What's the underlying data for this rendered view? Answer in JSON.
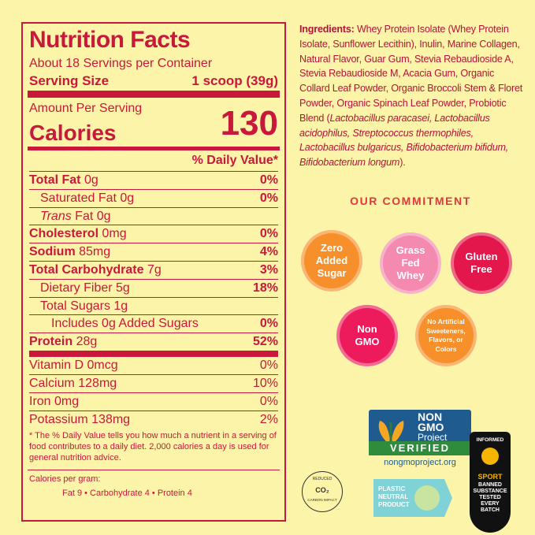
{
  "nutrition": {
    "title": "Nutrition Facts",
    "servings": "About 18 Servings per Container",
    "serving_size_label": "Serving Size",
    "serving_size_value": "1 scoop (39g)",
    "amount_per_serving": "Amount Per Serving",
    "calories_label": "Calories",
    "calories_value": "130",
    "daily_value_header": "% Daily Value*",
    "rows": [
      {
        "name": "Total Fat",
        "amount": "0g",
        "dv": "0%"
      },
      {
        "name": "Saturated Fat",
        "amount": "0g",
        "dv": "0%"
      },
      {
        "name_italic": "Trans",
        "name": "Fat",
        "amount": "0g"
      },
      {
        "name": "Cholesterol",
        "amount": "0mg",
        "dv": "0%"
      },
      {
        "name": "Sodium",
        "amount": "85mg",
        "dv": "4%"
      },
      {
        "name": "Total Carbohydrate",
        "amount": "7g",
        "dv": "3%"
      },
      {
        "name": "Dietary Fiber",
        "amount": "5g",
        "dv": "18%"
      },
      {
        "name": "Total Sugars",
        "amount": "1g"
      },
      {
        "name": "Includes",
        "amount": "0g Added Sugars",
        "dv": "0%"
      },
      {
        "name": "Protein",
        "amount": "28g",
        "dv": "52%"
      },
      {
        "name": "Vitamin D",
        "amount": "0mcg",
        "dv": "0%"
      },
      {
        "name": "Calcium",
        "amount": "128mg",
        "dv": "10%"
      },
      {
        "name": "Iron",
        "amount": "0mg",
        "dv": "0%"
      },
      {
        "name": "Potassium",
        "amount": "138mg",
        "dv": "2%"
      }
    ],
    "footnote": "* The % Daily Value tells you how much a nutrient in a serving of food contributes to a daily diet. 2,000 calories a day is used for general nutrition advice.",
    "calories_per_gram": "Calories per gram:",
    "calories_per_gram_values": "Fat 9 • Carbohydrate 4 • Protein 4"
  },
  "ingredients": {
    "label": "Ingredients:",
    "text": "Whey Protein Isolate (Whey Protein Isolate, Sunflower Lecithin), Inulin, Marine Collagen, Natural Flavor, Guar Gum, Stevia Rebaudioside A, Stevia Rebaudioside M, Acacia Gum, Organic Collard Leaf Powder, Organic Broccoli Stem & Floret Powder, Organic Spinach Leaf Powder, Probiotic Blend (",
    "italic": "Lactobacillus paracasei, Lactobacillus acidophilus, Streptococcus thermophiles, Lactobacillus bulgaricus, Bifidobacterium bifidum, Bifidobacterium longum",
    "tail": ")."
  },
  "commitment": {
    "title": "OUR COMMITMENT",
    "badges": [
      "Zero Added Sugar",
      "Grass Fed Whey",
      "Gluten Free",
      "Non GMO",
      "No Artificial Sweeteners, Flavors, or Colors"
    ]
  },
  "certifications": {
    "non_gmo": {
      "line1": "NON",
      "line2": "GMO",
      "line3": "Project",
      "verified": "VERIFIED",
      "url": "nongmoproject.org"
    },
    "carbon": {
      "top": "REDUCED",
      "center": "CO₂",
      "bottom": "CARBON IMPACT"
    },
    "plastic": {
      "line1": "PLASTIC",
      "line2": "NEUTRAL",
      "line3": "PRODUCT"
    },
    "informed": {
      "top": "INFORMED",
      "sport": "SPORT",
      "text": "BANNED SUBSTANCE TESTED EVERY BATCH"
    }
  }
}
